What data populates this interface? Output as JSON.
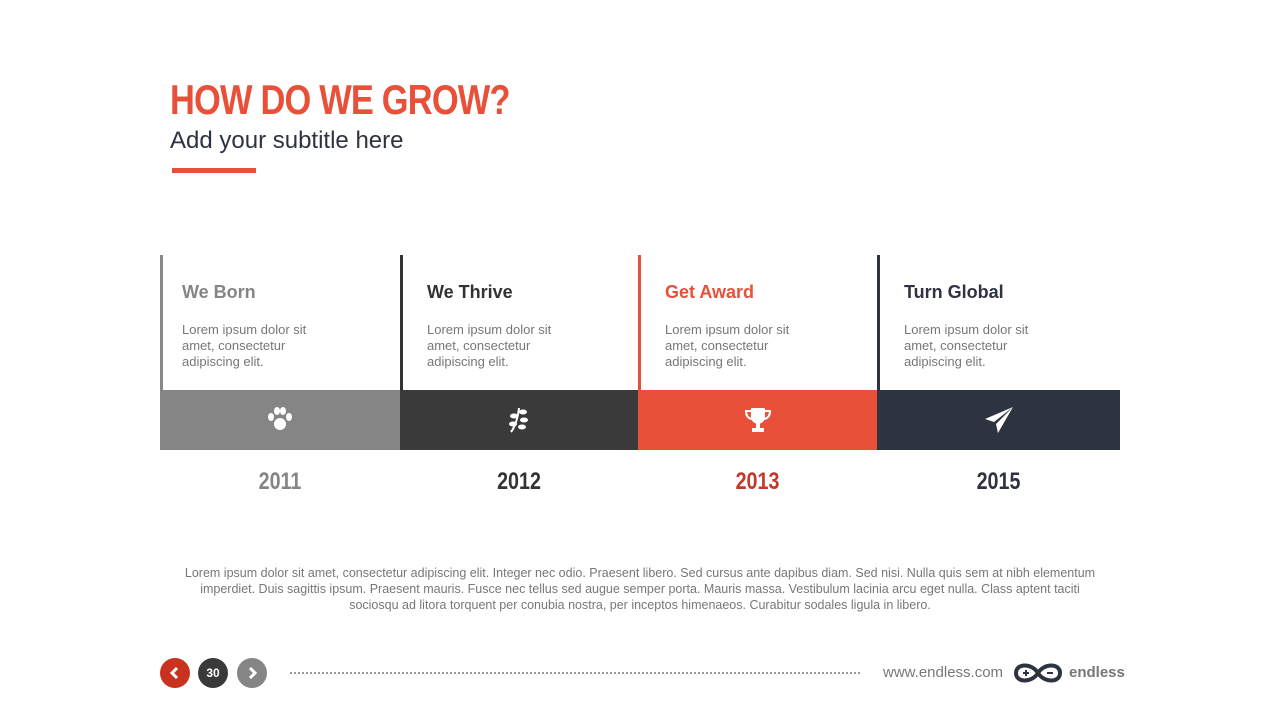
{
  "header": {
    "title": "HOW DO WE GROW?",
    "subtitle": "Add your subtitle here"
  },
  "timeline": [
    {
      "title": "We Born",
      "text": "Lorem ipsum dolor sit amet, consectetur adipiscing elit.",
      "year": "2011"
    },
    {
      "title": "We Thrive",
      "text": "Lorem ipsum dolor sit amet, consectetur adipiscing elit.",
      "year": "2012"
    },
    {
      "title": "Get Award",
      "text": "Lorem ipsum dolor sit amet, consectetur adipiscing elit.",
      "year": "2013"
    },
    {
      "title": "Turn Global",
      "text": "Lorem ipsum dolor sit amet, consectetur adipiscing elit.",
      "year": "2015"
    }
  ],
  "paragraph": "Lorem ipsum dolor sit amet, consectetur adipiscing elit. Integer nec odio. Praesent libero. Sed cursus ante dapibus diam. Sed nisi. Nulla quis sem at nibh elementum imperdiet. Duis sagittis ipsum. Praesent mauris. Fusce nec tellus sed augue semper porta. Mauris massa. Vestibulum lacinia arcu eget nulla. Class aptent taciti sociosqu ad litora torquent per conubia nostra, per inceptos himenaeos. Curabitur sodales ligula in libero.",
  "footer": {
    "page": "30",
    "url": "www.endless.com",
    "brand": "endless"
  }
}
